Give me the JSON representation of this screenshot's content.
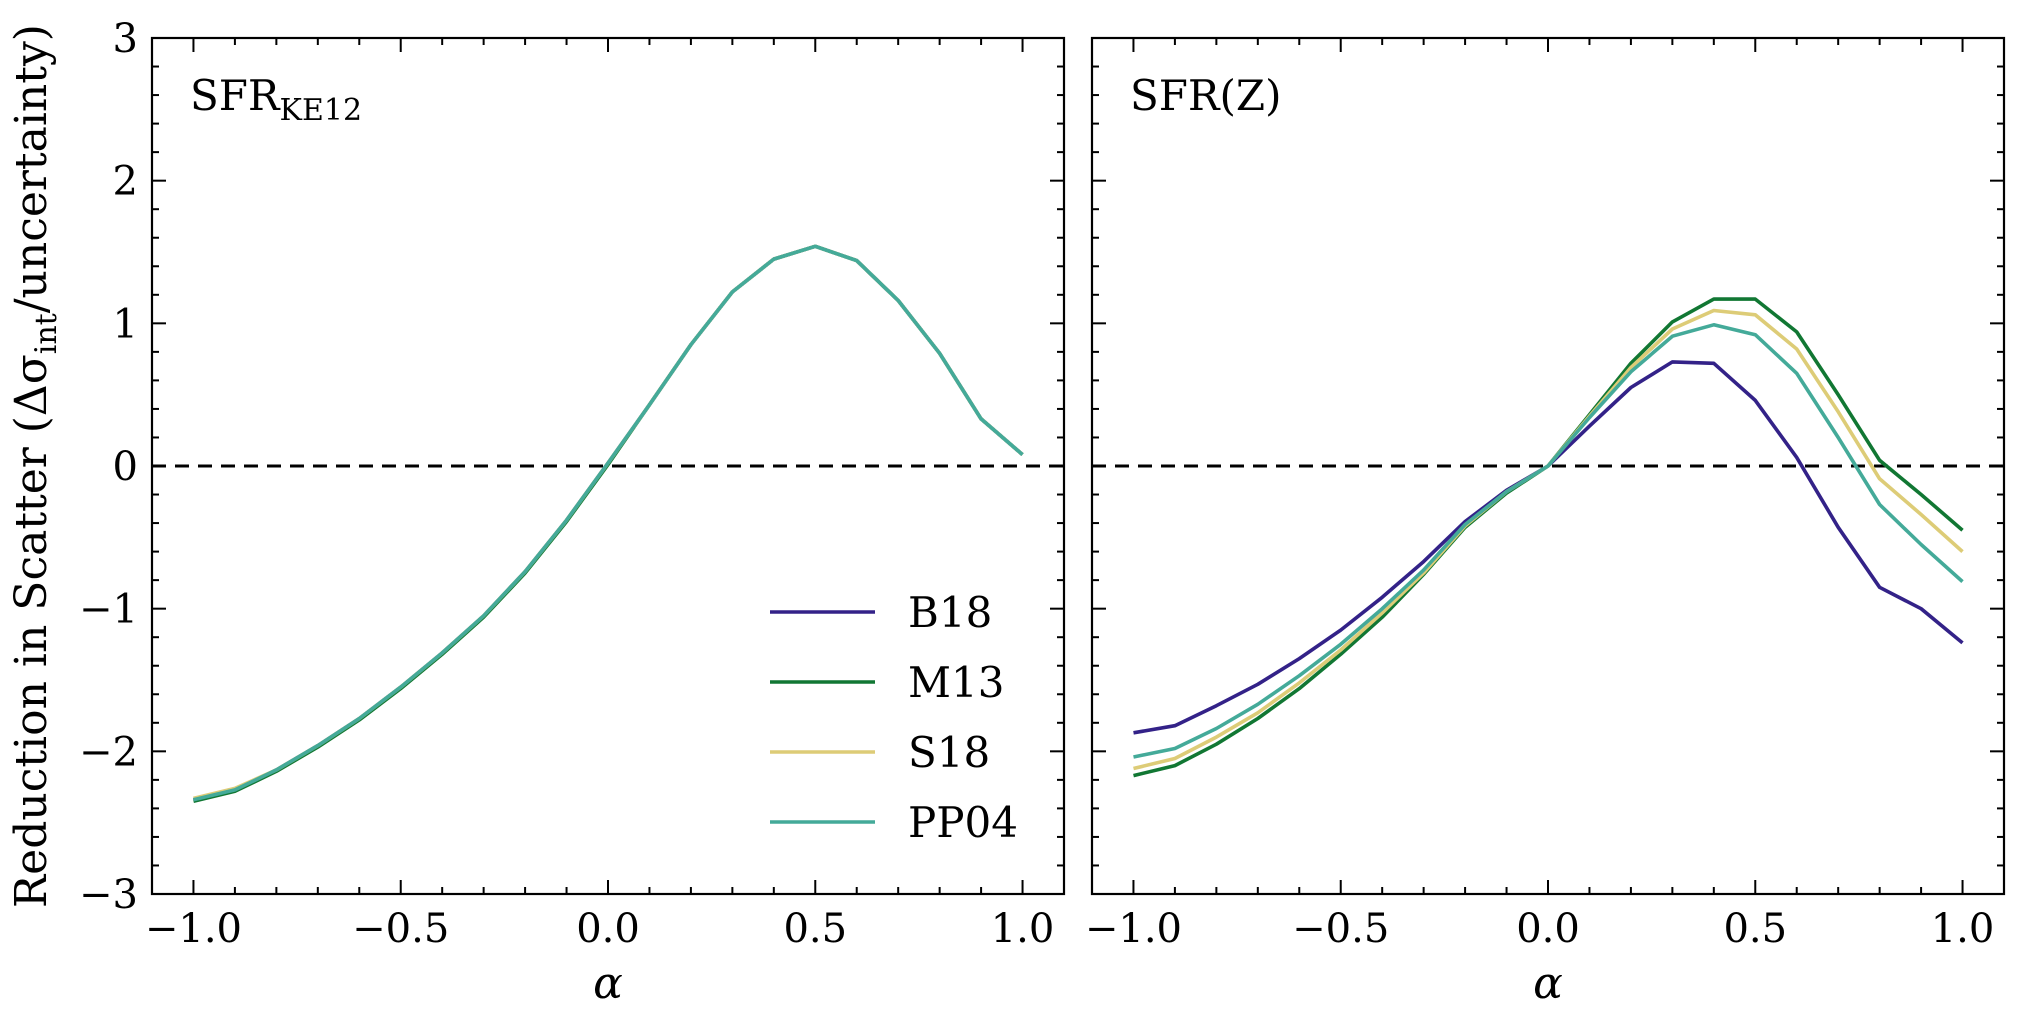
{
  "chart_data": [
    {
      "type": "line",
      "title": "SFR",
      "title_sub": "KE12",
      "xlabel": "α",
      "ylabel": "Reduction in Scatter (Δσ",
      "ylabel_sub": "int",
      "ylabel_end": "/uncertainty)",
      "xlim": [
        -1.1,
        1.1
      ],
      "ylim": [
        -3,
        3
      ],
      "xticks": [
        -1.0,
        -0.5,
        0.0,
        0.5,
        1.0
      ],
      "xtick_labels": [
        "−1.0",
        "−0.5",
        "0.0",
        "0.5",
        "1.0"
      ],
      "yticks": [
        -3,
        -2,
        -1,
        0,
        1,
        2,
        3
      ],
      "ytick_labels": [
        "−3",
        "−2",
        "−1",
        "0",
        "1",
        "2",
        "3"
      ],
      "reference_line": {
        "y": 0,
        "style": "dashed"
      },
      "x": [
        -1.0,
        -0.9,
        -0.8,
        -0.7,
        -0.6,
        -0.5,
        -0.4,
        -0.3,
        -0.2,
        -0.1,
        0.0,
        0.1,
        0.2,
        0.3,
        0.4,
        0.5,
        0.6,
        0.7,
        0.8,
        0.9,
        1.0
      ],
      "series": [
        {
          "name": "B18",
          "color": "#332288",
          "values": [
            -2.34,
            -2.27,
            -2.13,
            -1.96,
            -1.77,
            -1.55,
            -1.31,
            -1.05,
            -0.74,
            -0.38,
            0.02,
            0.43,
            0.85,
            1.22,
            1.45,
            1.54,
            1.44,
            1.16,
            0.79,
            0.33,
            0.08
          ]
        },
        {
          "name": "M13",
          "color": "#117733",
          "values": [
            -2.35,
            -2.28,
            -2.14,
            -1.97,
            -1.78,
            -1.56,
            -1.32,
            -1.06,
            -0.75,
            -0.39,
            0.01,
            0.43,
            0.85,
            1.22,
            1.45,
            1.54,
            1.44,
            1.16,
            0.79,
            0.33,
            0.08
          ]
        },
        {
          "name": "S18",
          "color": "#DDCC77",
          "values": [
            -2.33,
            -2.26,
            -2.13,
            -1.96,
            -1.77,
            -1.55,
            -1.31,
            -1.05,
            -0.74,
            -0.38,
            0.02,
            0.43,
            0.85,
            1.22,
            1.45,
            1.54,
            1.44,
            1.16,
            0.79,
            0.33,
            0.08
          ]
        },
        {
          "name": "PP04",
          "color": "#44AA99",
          "values": [
            -2.34,
            -2.27,
            -2.13,
            -1.96,
            -1.77,
            -1.55,
            -1.31,
            -1.05,
            -0.74,
            -0.38,
            0.02,
            0.43,
            0.85,
            1.22,
            1.45,
            1.54,
            1.44,
            1.16,
            0.79,
            0.33,
            0.08
          ]
        }
      ],
      "legend": {
        "entries": [
          "B18",
          "M13",
          "S18",
          "PP04"
        ],
        "placement": "lower-right"
      }
    },
    {
      "type": "line",
      "title": "SFR(Z)",
      "xlabel": "α",
      "xlim": [
        -1.1,
        1.1
      ],
      "ylim": [
        -3,
        3
      ],
      "xticks": [
        -1.0,
        -0.5,
        0.0,
        0.5,
        1.0
      ],
      "xtick_labels": [
        "−1.0",
        "−0.5",
        "0.0",
        "0.5",
        "1.0"
      ],
      "yticks": [
        -3,
        -2,
        -1,
        0,
        1,
        2,
        3
      ],
      "reference_line": {
        "y": 0,
        "style": "dashed"
      },
      "x": [
        -1.0,
        -0.9,
        -0.8,
        -0.7,
        -0.6,
        -0.5,
        -0.4,
        -0.3,
        -0.2,
        -0.1,
        0.0,
        0.1,
        0.2,
        0.3,
        0.4,
        0.5,
        0.6,
        0.7,
        0.8,
        0.9,
        1.0
      ],
      "series": [
        {
          "name": "B18",
          "color": "#332288",
          "values": [
            -1.87,
            -1.82,
            -1.68,
            -1.53,
            -1.35,
            -1.15,
            -0.92,
            -0.67,
            -0.39,
            -0.17,
            0.0,
            0.28,
            0.55,
            0.73,
            0.72,
            0.46,
            0.06,
            -0.43,
            -0.85,
            -1.0,
            -1.24
          ]
        },
        {
          "name": "M13",
          "color": "#117733",
          "values": [
            -2.17,
            -2.1,
            -1.95,
            -1.77,
            -1.56,
            -1.32,
            -1.06,
            -0.76,
            -0.43,
            -0.19,
            0.0,
            0.36,
            0.72,
            1.01,
            1.17,
            1.17,
            0.94,
            0.5,
            0.04,
            -0.2,
            -0.45
          ]
        },
        {
          "name": "S18",
          "color": "#DDCC77",
          "values": [
            -2.12,
            -2.05,
            -1.9,
            -1.73,
            -1.52,
            -1.29,
            -1.03,
            -0.75,
            -0.42,
            -0.18,
            0.0,
            0.35,
            0.69,
            0.96,
            1.09,
            1.06,
            0.82,
            0.38,
            -0.09,
            -0.34,
            -0.6
          ]
        },
        {
          "name": "PP04",
          "color": "#44AA99",
          "values": [
            -2.04,
            -1.98,
            -1.84,
            -1.67,
            -1.47,
            -1.25,
            -1.0,
            -0.73,
            -0.41,
            -0.18,
            0.0,
            0.34,
            0.66,
            0.91,
            0.99,
            0.92,
            0.65,
            0.2,
            -0.27,
            -0.55,
            -0.81
          ]
        }
      ]
    }
  ]
}
